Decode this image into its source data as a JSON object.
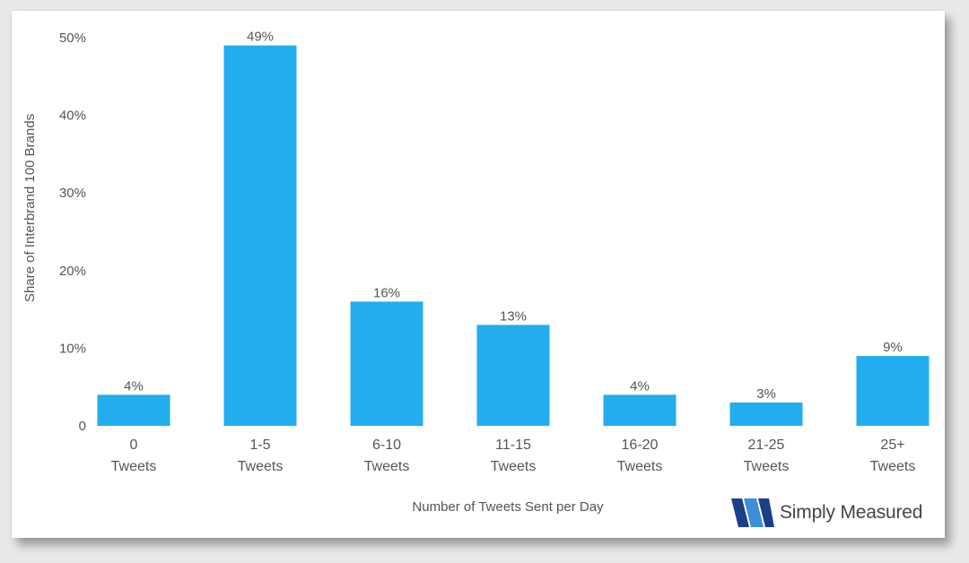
{
  "chart_data": {
    "type": "bar",
    "categories": [
      "0 Tweets",
      "1-5 Tweets",
      "6-10 Tweets",
      "11-15 Tweets",
      "16-20 Tweets",
      "21-25 Tweets",
      "25+ Tweets"
    ],
    "category_lines": [
      [
        "0",
        "Tweets"
      ],
      [
        "1-5",
        "Tweets"
      ],
      [
        "6-10",
        "Tweets"
      ],
      [
        "11-15",
        "Tweets"
      ],
      [
        "16-20",
        "Tweets"
      ],
      [
        "21-25",
        "Tweets"
      ],
      [
        "25+",
        "Tweets"
      ]
    ],
    "values": [
      4,
      49,
      16,
      13,
      4,
      3,
      9
    ],
    "data_labels": [
      "4%",
      "49%",
      "16%",
      "13%",
      "4%",
      "3%",
      "9%"
    ],
    "xlabel": "Number of Tweets Sent per Day",
    "ylabel": "Share of Interbrand 100 Brands",
    "ylim": [
      0,
      50
    ],
    "yticks": [
      0,
      10,
      20,
      30,
      40,
      50
    ],
    "ytick_labels": [
      "0",
      "10%",
      "20%",
      "30%",
      "40%",
      "50%"
    ],
    "bar_color": "#22adef",
    "grid": false
  },
  "branding": {
    "logo_text": "Simply Measured",
    "logo_colors": [
      "#1b3f8b",
      "#3a8fd8"
    ]
  }
}
